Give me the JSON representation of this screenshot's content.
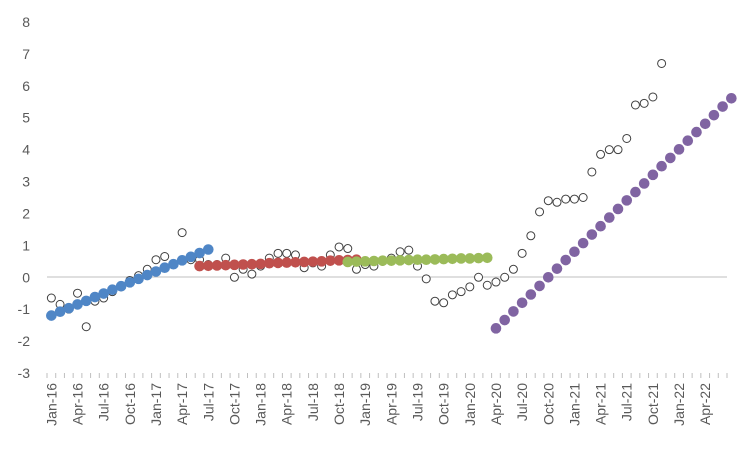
{
  "chart_data": {
    "type": "scatter",
    "title": "",
    "xlabel": "",
    "ylabel": "",
    "ylim": [
      -3,
      8
    ],
    "yticks": [
      -3,
      -2,
      -1,
      0,
      1,
      2,
      3,
      4,
      5,
      6,
      7,
      8
    ],
    "x_start": "Jan-16",
    "x_end": "Jun-22",
    "xtick_labels": [
      "Jan-16",
      "Apr-16",
      "Jul-16",
      "Oct-16",
      "Jan-17",
      "Apr-17",
      "Jul-17",
      "Oct-17",
      "Jan-18",
      "Apr-18",
      "Jul-18",
      "Oct-18",
      "Jan-19",
      "Apr-19",
      "Jul-19",
      "Oct-19",
      "Jan-20",
      "Apr-20",
      "Jul-20",
      "Oct-20",
      "Jan-21",
      "Apr-21",
      "Jul-21",
      "Oct-21",
      "Jan-22",
      "Apr-22"
    ],
    "gridlines": false,
    "legend": "none",
    "series": [
      {
        "style": "hollow",
        "color": "#404040",
        "start": "Jan-16",
        "values": [
          -0.65,
          -0.85,
          -1.0,
          -0.5,
          -1.55,
          -0.75,
          -0.65,
          -0.45,
          -0.3,
          -0.1,
          0.05,
          0.25,
          0.55,
          0.65,
          0.4,
          1.4,
          0.55,
          0.55,
          0.4,
          0.4,
          0.6,
          0.0,
          0.25,
          0.1,
          0.35,
          0.6,
          0.75,
          0.75,
          0.7,
          0.3,
          0.45,
          0.35,
          0.7,
          0.95,
          0.9,
          0.25,
          0.4,
          0.35,
          0.5,
          0.6,
          0.8,
          0.85,
          0.35,
          -0.05,
          -0.75,
          -0.8,
          -0.55,
          -0.45,
          -0.3,
          0.0,
          -0.25,
          -0.15,
          0.0,
          0.25,
          0.75,
          1.3,
          2.05,
          2.4,
          2.35,
          2.45,
          2.45,
          2.5,
          3.3,
          3.85,
          4.0,
          4.0,
          4.35,
          5.4,
          5.45,
          5.65,
          6.7
        ]
      },
      {
        "style": "filled",
        "color": "#4f86c6",
        "start": "Jan-16",
        "values": [
          -1.2,
          -1.08,
          -0.97,
          -0.85,
          -0.74,
          -0.62,
          -0.51,
          -0.39,
          -0.28,
          -0.16,
          -0.05,
          0.07,
          0.18,
          0.3,
          0.41,
          0.53,
          0.64,
          0.76,
          0.87
        ]
      },
      {
        "style": "filled",
        "color": "#c0504d",
        "start": "Jun-17",
        "values": [
          0.35,
          0.36,
          0.37,
          0.38,
          0.39,
          0.4,
          0.41,
          0.42,
          0.44,
          0.45,
          0.46,
          0.47,
          0.48,
          0.49,
          0.5,
          0.52,
          0.53,
          0.54,
          0.55
        ]
      },
      {
        "style": "filled",
        "color": "#9bbb59",
        "start": "Nov-18",
        "values": [
          0.48,
          0.49,
          0.5,
          0.51,
          0.52,
          0.52,
          0.53,
          0.54,
          0.55,
          0.55,
          0.56,
          0.57,
          0.58,
          0.59,
          0.59,
          0.6,
          0.61
        ]
      },
      {
        "style": "filled",
        "color": "#8064a2",
        "start": "Apr-20",
        "values": [
          -1.6,
          -1.34,
          -1.07,
          -0.8,
          -0.54,
          -0.27,
          0.0,
          0.27,
          0.54,
          0.8,
          1.07,
          1.34,
          1.6,
          1.87,
          2.14,
          2.41,
          2.67,
          2.94,
          3.21,
          3.48,
          3.74,
          4.01,
          4.28,
          4.55,
          4.81,
          5.08,
          5.35,
          5.61
        ]
      }
    ]
  }
}
